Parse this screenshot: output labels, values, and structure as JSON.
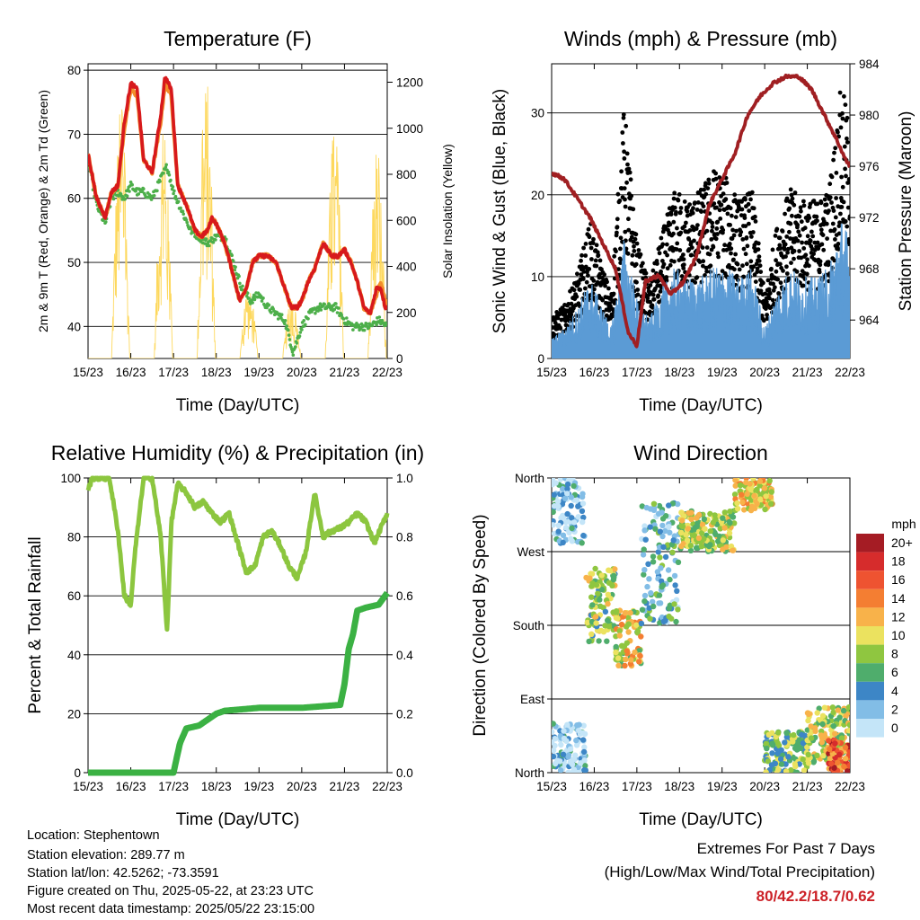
{
  "footer": {
    "location": "Location: Stephentown",
    "elevation": "Station elevation: 289.77 m",
    "latlon": "Station lat/lon: 42.5262; -73.3591",
    "created": "Figure created on Thu, 2025-05-22, at 23:23 UTC",
    "recent": "Most recent data timestamp: 2025/05/22 23:15:00",
    "extremes_title": "Extremes For Past 7 Days",
    "extremes_sub": "(High/Low/Max Wind/Total Precipitation)",
    "extremes_values": "80/42.2/18.7/0.62"
  },
  "chart_data": [
    {
      "type": "line",
      "title": "Temperature (F)",
      "xlabel": "Time (Day/UTC)",
      "ylabel": "2m & 9m T (Red, Orange) & 2m Td (Green)",
      "ylabel_right": "Solar Insolation (Yellow)",
      "x_ticks": [
        "15/23",
        "16/23",
        "17/23",
        "18/23",
        "19/23",
        "20/23",
        "21/23",
        "22/23"
      ],
      "ylim": [
        35,
        81
      ],
      "y_ticks": [
        40,
        50,
        60,
        70,
        80
      ],
      "y2lim": [
        0,
        1280
      ],
      "y2_ticks": [
        0,
        200,
        400,
        600,
        800,
        1000,
        1200
      ],
      "series": [
        {
          "name": "2m T",
          "color": "#d7191c",
          "x": [
            0,
            0.2,
            0.4,
            0.55,
            0.7,
            0.85,
            1.0,
            1.15,
            1.3,
            1.5,
            1.7,
            1.8,
            1.95,
            2.1,
            2.3,
            2.5,
            2.65,
            2.8,
            2.9,
            3.0,
            3.2,
            3.4,
            3.55,
            3.7,
            3.85,
            4.0,
            4.2,
            4.4,
            4.6,
            4.75,
            4.9,
            5.0,
            5.15,
            5.3,
            5.5,
            5.7,
            5.85,
            6.0,
            6.15,
            6.3,
            6.45,
            6.6,
            6.75,
            6.85,
            6.95,
            7.0
          ],
          "y": [
            67,
            60,
            57,
            61,
            62,
            72,
            78,
            77,
            66,
            64,
            73,
            79,
            77,
            62,
            59,
            55,
            54,
            55,
            57,
            56,
            53,
            48,
            44,
            46,
            50,
            51,
            51,
            50,
            46,
            43,
            43,
            44,
            47,
            49,
            53,
            51,
            51,
            52,
            50,
            47,
            43,
            42,
            46,
            46,
            43,
            43
          ]
        },
        {
          "name": "9m T",
          "color": "#f28e2b",
          "x": [
            0,
            0.2,
            0.4,
            0.55,
            0.7,
            0.85,
            1.0,
            1.15,
            1.3,
            1.5,
            1.7,
            1.8,
            1.95,
            2.1,
            2.3,
            2.5,
            2.65,
            2.8,
            2.9,
            3.0,
            3.2,
            3.4,
            3.55,
            3.7,
            3.85,
            4.0,
            4.2,
            4.4,
            4.6,
            4.75,
            4.9,
            5.0,
            5.15,
            5.3,
            5.5,
            5.7,
            5.85,
            6.0,
            6.15,
            6.3,
            6.45,
            6.6,
            6.75,
            6.85,
            6.95,
            7.0
          ],
          "y": [
            67,
            60,
            57,
            61,
            62,
            71,
            77,
            76,
            66,
            64,
            72,
            78,
            76,
            62,
            59,
            55,
            54,
            55,
            57,
            56,
            53,
            48,
            44,
            46,
            50,
            51,
            51,
            50,
            46,
            43,
            43,
            44,
            47,
            49,
            53,
            51,
            51,
            52,
            50,
            47,
            43,
            42,
            45,
            47,
            44,
            43
          ]
        },
        {
          "name": "2m Td",
          "color": "#4daf4a",
          "x": [
            0,
            0.2,
            0.4,
            0.55,
            0.7,
            0.85,
            1.0,
            1.15,
            1.3,
            1.5,
            1.7,
            1.85,
            2.0,
            2.2,
            2.4,
            2.6,
            2.8,
            3.0,
            3.2,
            3.4,
            3.6,
            3.8,
            4.0,
            4.2,
            4.4,
            4.6,
            4.8,
            5.0,
            5.2,
            5.4,
            5.6,
            5.8,
            6.0,
            6.2,
            6.4,
            6.6,
            6.8,
            7.0
          ],
          "y": [
            66,
            59,
            56,
            60,
            61,
            60,
            62,
            61,
            61,
            60,
            63,
            65,
            61,
            58,
            55,
            54,
            53,
            54,
            54,
            50,
            46,
            44,
            45,
            43,
            42,
            41,
            36,
            40,
            42,
            43,
            43,
            43,
            41,
            40,
            40,
            40,
            41,
            40
          ]
        },
        {
          "name": "Solar",
          "color": "#fdd85d",
          "axis": "right",
          "days": 7,
          "daily_peak": [
            1100,
            980,
            1220,
            300,
            250,
            1000,
            900
          ]
        }
      ]
    },
    {
      "type": "line",
      "title": "Winds (mph) & Pressure (mb)",
      "xlabel": "Time (Day/UTC)",
      "ylabel": "Sonic Wind & Gust (Blue, Black)",
      "ylabel_right": "Station Pressure (Maroon)",
      "x_ticks": [
        "15/23",
        "16/23",
        "17/23",
        "18/23",
        "19/23",
        "20/23",
        "21/23",
        "22/23"
      ],
      "ylim": [
        0,
        36
      ],
      "y_ticks": [
        0,
        10,
        20,
        30
      ],
      "y2lim": [
        961,
        984
      ],
      "y2_ticks": [
        964,
        968,
        972,
        976,
        980,
        984
      ],
      "series": [
        {
          "name": "Wind",
          "color": "#5b9bd5",
          "x": [
            0,
            0.3,
            0.6,
            0.9,
            1.1,
            1.4,
            1.7,
            2.0,
            2.3,
            2.6,
            2.9,
            3.2,
            3.5,
            3.8,
            4.1,
            4.4,
            4.7,
            5.0,
            5.3,
            5.6,
            5.9,
            6.2,
            6.5,
            6.8,
            7.0
          ],
          "y": [
            2,
            3,
            5,
            8,
            6,
            3,
            12,
            6,
            4,
            7,
            9,
            8,
            8,
            9,
            9,
            8,
            9,
            3,
            7,
            9,
            8,
            8,
            9,
            14,
            12
          ]
        },
        {
          "name": "Gust",
          "color": "#000000",
          "x": [
            0,
            0.3,
            0.6,
            0.9,
            1.1,
            1.4,
            1.7,
            2.0,
            2.3,
            2.6,
            2.9,
            3.2,
            3.5,
            3.8,
            4.1,
            4.4,
            4.7,
            5.0,
            5.3,
            5.6,
            5.9,
            6.2,
            6.5,
            6.8,
            7.0
          ],
          "y": [
            4,
            5,
            8,
            13,
            10,
            6,
            24,
            11,
            7,
            12,
            16,
            15,
            16,
            18,
            17,
            15,
            16,
            6,
            13,
            16,
            15,
            15,
            16,
            26,
            22
          ]
        },
        {
          "name": "Pressure",
          "color": "#a01f22",
          "axis": "right",
          "x": [
            0,
            0.3,
            0.6,
            0.9,
            1.2,
            1.5,
            1.8,
            2.0,
            2.2,
            2.5,
            2.8,
            3.1,
            3.4,
            3.7,
            4.0,
            4.3,
            4.6,
            4.9,
            5.2,
            5.5,
            5.8,
            6.1,
            6.4,
            6.7,
            6.9,
            7.0
          ],
          "y": [
            975.5,
            975,
            973.5,
            972,
            970,
            968,
            963,
            962,
            967,
            967.5,
            966,
            967,
            969,
            973,
            975,
            977,
            980,
            981.5,
            982.5,
            983,
            983,
            982,
            980,
            978,
            976.5,
            976
          ]
        }
      ]
    },
    {
      "type": "line",
      "title": "Relative Humidity (%) & Precipitation (in)",
      "xlabel": "Time (Day/UTC)",
      "ylabel": "Percent & Total Rainfall",
      "x_ticks": [
        "15/23",
        "16/23",
        "17/23",
        "18/23",
        "19/23",
        "20/23",
        "21/23",
        "22/23"
      ],
      "ylim": [
        0,
        100
      ],
      "y_ticks": [
        0,
        20,
        40,
        60,
        80,
        100
      ],
      "y2lim": [
        0,
        1.0
      ],
      "y2_ticks": [
        0.0,
        0.2,
        0.4,
        0.6,
        0.8,
        1.0
      ],
      "series": [
        {
          "name": "RH",
          "color": "#8cc63f",
          "x": [
            0,
            0.1,
            0.3,
            0.5,
            0.7,
            0.85,
            1.0,
            1.1,
            1.3,
            1.5,
            1.7,
            1.85,
            1.95,
            2.1,
            2.3,
            2.5,
            2.7,
            2.9,
            3.1,
            3.3,
            3.5,
            3.7,
            3.9,
            4.1,
            4.3,
            4.5,
            4.7,
            4.9,
            5.1,
            5.3,
            5.5,
            5.7,
            5.9,
            6.1,
            6.3,
            6.5,
            6.7,
            6.85,
            7.0
          ],
          "y": [
            96,
            100,
            100,
            100,
            82,
            60,
            57,
            75,
            100,
            100,
            80,
            48,
            85,
            98,
            95,
            90,
            92,
            88,
            85,
            88,
            78,
            68,
            70,
            80,
            82,
            77,
            70,
            66,
            75,
            95,
            80,
            82,
            83,
            85,
            88,
            85,
            78,
            83,
            88
          ]
        },
        {
          "name": "Total Precip",
          "color": "#3bb143",
          "axis": "right",
          "x": [
            0,
            1.0,
            2.0,
            2.15,
            2.3,
            2.6,
            3.0,
            3.2,
            4.0,
            5.0,
            5.9,
            6.0,
            6.1,
            6.2,
            6.3,
            6.5,
            6.8,
            7.0
          ],
          "y": [
            0,
            0,
            0,
            0.1,
            0.15,
            0.16,
            0.2,
            0.21,
            0.22,
            0.22,
            0.23,
            0.3,
            0.42,
            0.47,
            0.55,
            0.56,
            0.57,
            0.61
          ]
        }
      ]
    },
    {
      "type": "scatter",
      "title": "Wind Direction",
      "xlabel": "Time (Day/UTC)",
      "ylabel": "Direction (Colored By Speed)",
      "x_ticks": [
        "15/23",
        "16/23",
        "17/23",
        "18/23",
        "19/23",
        "20/23",
        "21/23",
        "22/23"
      ],
      "y_ticks": [
        "North",
        "East",
        "South",
        "West",
        "North"
      ],
      "ylim": [
        0,
        360
      ],
      "legend": {
        "title": "mph",
        "labels": [
          "20+",
          "18",
          "16",
          "14",
          "12",
          "10",
          "8",
          "6",
          "4",
          "2",
          "0"
        ],
        "colors": [
          "#a51c24",
          "#d62c2c",
          "#ee5331",
          "#f47e32",
          "#f8b24a",
          "#ebe25f",
          "#8fc640",
          "#4fad6c",
          "#3d86c6",
          "#82bde6",
          "#c4e5f8"
        ]
      },
      "clusters": [
        {
          "x": [
            0,
            0.8
          ],
          "dir": [
            280,
            360
          ],
          "spd": 2
        },
        {
          "x": [
            0,
            0.8
          ],
          "dir": [
            0,
            60
          ],
          "spd": 2
        },
        {
          "x": [
            0.8,
            1.5
          ],
          "dir": [
            160,
            250
          ],
          "spd": 8
        },
        {
          "x": [
            1.5,
            2.1
          ],
          "dir": [
            130,
            200
          ],
          "spd": 10
        },
        {
          "x": [
            2.1,
            3.0
          ],
          "dir": [
            180,
            330
          ],
          "spd": 4
        },
        {
          "x": [
            3.0,
            4.3
          ],
          "dir": [
            270,
            320
          ],
          "spd": 9
        },
        {
          "x": [
            4.3,
            5.2
          ],
          "dir": [
            320,
            360
          ],
          "spd": 11
        },
        {
          "x": [
            5.0,
            6.0
          ],
          "dir": [
            0,
            50
          ],
          "spd": 7
        },
        {
          "x": [
            6.0,
            7.0
          ],
          "dir": [
            10,
            80
          ],
          "spd": 9
        },
        {
          "x": [
            6.5,
            7.0
          ],
          "dir": [
            0,
            40
          ],
          "spd": 16
        }
      ]
    }
  ]
}
